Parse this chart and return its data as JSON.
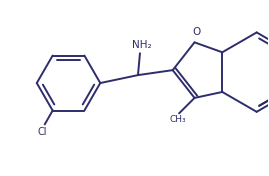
{
  "bg_color": "#ffffff",
  "line_color": "#2d2d6b",
  "lw": 1.4,
  "figsize": [
    2.69,
    1.76
  ],
  "dpi": 100,
  "NH2": "NH₂",
  "Cl": "Cl",
  "O": "O"
}
